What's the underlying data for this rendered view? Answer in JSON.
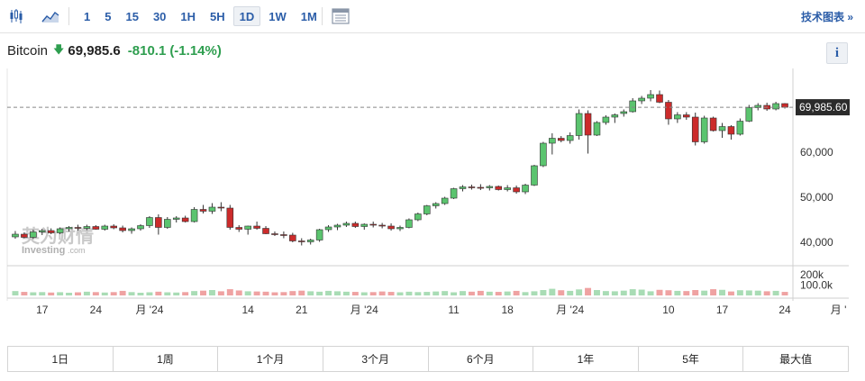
{
  "toolbar": {
    "candles_icon": "candlestick-icon",
    "area_icon": "area-chart-icon",
    "timeframes": [
      "1",
      "5",
      "15",
      "30",
      "1H",
      "5H",
      "1D",
      "1W",
      "1M"
    ],
    "active_timeframe": "1D",
    "indicator_icon": "indicator-panel-icon",
    "advanced_link": "技术图表 »"
  },
  "header": {
    "asset": "Bitcoin",
    "direction_icon": "down-arrow-icon",
    "price": "69,985.6",
    "change": "-810.1",
    "change_pct": "(-1.14%)",
    "info_label": "i"
  },
  "colors": {
    "up": "#2e9e4f",
    "down": "#d32f2f",
    "up_fill": "#5bc46f",
    "down_fill": "#cc2b2b",
    "vol_up": "#a9dcb5",
    "vol_down": "#efa2a2",
    "link": "#2b5da8"
  },
  "chart_data": {
    "type": "candlestick",
    "y_axis_ticks": [
      "60,000",
      "50,000",
      "40,000"
    ],
    "y_tick_values": [
      60000,
      50000,
      40000
    ],
    "ylim": [
      35000,
      77000
    ],
    "volume_ticks": [
      "200k",
      "100.0k"
    ],
    "volume_tick_values": [
      200000,
      100000
    ],
    "volume_max": 260000,
    "current_price_label": "69,985.60",
    "current_price": 69985.6,
    "x_tick_labels": [
      "17",
      "24",
      "月 '24",
      "14",
      "21",
      "月 '24",
      "11",
      "18",
      "月 '24",
      "10",
      "17",
      "24",
      "月 '"
    ],
    "x_tick_index": [
      3,
      9,
      15,
      26,
      32,
      39,
      49,
      55,
      62,
      73,
      79,
      86,
      92
    ],
    "watermark": {
      "line1": "英为财情",
      "line2": "Investing",
      "line3": ".com"
    },
    "candles": [
      [
        41200,
        42500,
        40800,
        41800
      ],
      [
        41800,
        42200,
        40900,
        41100
      ],
      [
        41100,
        42800,
        40700,
        42300
      ],
      [
        42300,
        43000,
        41600,
        42600
      ],
      [
        42600,
        43100,
        41800,
        42100
      ],
      [
        42100,
        43300,
        41800,
        43000
      ],
      [
        43000,
        43600,
        42400,
        43300
      ],
      [
        43300,
        43900,
        42600,
        43100
      ],
      [
        43100,
        43900,
        42700,
        43500
      ],
      [
        43500,
        43800,
        42800,
        42900
      ],
      [
        42900,
        43900,
        42600,
        43600
      ],
      [
        43600,
        44000,
        42900,
        43200
      ],
      [
        43200,
        43700,
        42200,
        42600
      ],
      [
        42600,
        43300,
        41900,
        43000
      ],
      [
        43000,
        44000,
        42600,
        43700
      ],
      [
        43700,
        45800,
        43200,
        45500
      ],
      [
        45500,
        46200,
        41700,
        43300
      ],
      [
        43300,
        45600,
        43000,
        45100
      ],
      [
        45100,
        45800,
        44400,
        45400
      ],
      [
        45400,
        45900,
        44400,
        44600
      ],
      [
        44600,
        47800,
        44400,
        47300
      ],
      [
        47300,
        48300,
        46400,
        46900
      ],
      [
        46900,
        48700,
        46300,
        47800
      ],
      [
        47800,
        48900,
        46900,
        47600
      ],
      [
        47600,
        48300,
        42800,
        43300
      ],
      [
        43300,
        43800,
        42300,
        42900
      ],
      [
        42900,
        43700,
        41700,
        43600
      ],
      [
        43600,
        44600,
        42800,
        43100
      ],
      [
        43100,
        43600,
        41800,
        41900
      ],
      [
        41900,
        42400,
        41400,
        41700
      ],
      [
        41700,
        42400,
        40900,
        41600
      ],
      [
        41600,
        42100,
        40000,
        40300
      ],
      [
        40300,
        40900,
        39300,
        40100
      ],
      [
        40100,
        40800,
        39500,
        40500
      ],
      [
        40500,
        43000,
        40100,
        42800
      ],
      [
        42800,
        43800,
        42300,
        43400
      ],
      [
        43400,
        44100,
        42700,
        43800
      ],
      [
        43800,
        44600,
        43400,
        44200
      ],
      [
        44200,
        44600,
        43200,
        43500
      ],
      [
        43500,
        44200,
        42800,
        44000
      ],
      [
        44000,
        44600,
        43300,
        43800
      ],
      [
        43800,
        44300,
        43100,
        43600
      ],
      [
        43600,
        44200,
        42600,
        43000
      ],
      [
        43000,
        43700,
        42500,
        43300
      ],
      [
        43300,
        45300,
        43100,
        45000
      ],
      [
        45000,
        46600,
        44700,
        46300
      ],
      [
        46300,
        48300,
        46000,
        48100
      ],
      [
        48100,
        48900,
        47500,
        48600
      ],
      [
        48600,
        50100,
        48300,
        49800
      ],
      [
        49800,
        52100,
        49600,
        51900
      ],
      [
        51900,
        52700,
        51300,
        52300
      ],
      [
        52300,
        52800,
        51700,
        52200
      ],
      [
        52200,
        52900,
        51600,
        52100
      ],
      [
        52100,
        52700,
        51500,
        52400
      ],
      [
        52400,
        52600,
        51500,
        51700
      ],
      [
        51700,
        52700,
        51300,
        52100
      ],
      [
        52100,
        52600,
        50800,
        51200
      ],
      [
        51200,
        53000,
        50700,
        52700
      ],
      [
        52700,
        57200,
        52500,
        57000
      ],
      [
        57000,
        62300,
        56700,
        62000
      ],
      [
        62000,
        64200,
        59500,
        63100
      ],
      [
        63100,
        63600,
        62200,
        62600
      ],
      [
        62600,
        64400,
        61900,
        63700
      ],
      [
        63700,
        69500,
        62800,
        68600
      ],
      [
        68600,
        69300,
        59700,
        63800
      ],
      [
        63800,
        66900,
        63600,
        66600
      ],
      [
        66600,
        68200,
        66100,
        67800
      ],
      [
        67800,
        68600,
        66500,
        68300
      ],
      [
        68600,
        69500,
        67900,
        69000
      ],
      [
        69000,
        72000,
        68800,
        71400
      ],
      [
        71400,
        72500,
        70700,
        72000
      ],
      [
        72000,
        73800,
        71300,
        72800
      ],
      [
        72800,
        73700,
        70900,
        71100
      ],
      [
        71100,
        71600,
        66100,
        67400
      ],
      [
        67400,
        68900,
        66500,
        68300
      ],
      [
        68300,
        68900,
        67200,
        67800
      ],
      [
        67800,
        68800,
        61500,
        62300
      ],
      [
        62300,
        68100,
        61900,
        67600
      ],
      [
        67600,
        67900,
        64600,
        64800
      ],
      [
        64800,
        66500,
        63200,
        65700
      ],
      [
        65700,
        66000,
        62800,
        64000
      ],
      [
        64000,
        67500,
        63700,
        66900
      ],
      [
        66900,
        70500,
        66700,
        69900
      ],
      [
        69900,
        70900,
        69300,
        70400
      ],
      [
        70400,
        71000,
        69200,
        69600
      ],
      [
        69600,
        71200,
        69300,
        70800
      ],
      [
        70800,
        70900,
        69700,
        69985
      ]
    ],
    "volumes": [
      42,
      34,
      30,
      32,
      28,
      31,
      26,
      30,
      36,
      32,
      28,
      32,
      44,
      32,
      26,
      30,
      36,
      30,
      28,
      32,
      42,
      46,
      52,
      40,
      60,
      48,
      40,
      38,
      36,
      30,
      32,
      42,
      46,
      40,
      36,
      44,
      40,
      36,
      34,
      30,
      32,
      38,
      34,
      30,
      36,
      32,
      34,
      38,
      42,
      30,
      42,
      36,
      44,
      36,
      34,
      38,
      44,
      32,
      40,
      52,
      64,
      50,
      44,
      58,
      72,
      52,
      42,
      40,
      46,
      60,
      56,
      40,
      54,
      50,
      44,
      42,
      52,
      46,
      60,
      54,
      38,
      50,
      48,
      46,
      40,
      44,
      34
    ]
  },
  "ranges": [
    "1日",
    "1周",
    "1个月",
    "3个月",
    "6个月",
    "1年",
    "5年",
    "最大值"
  ]
}
